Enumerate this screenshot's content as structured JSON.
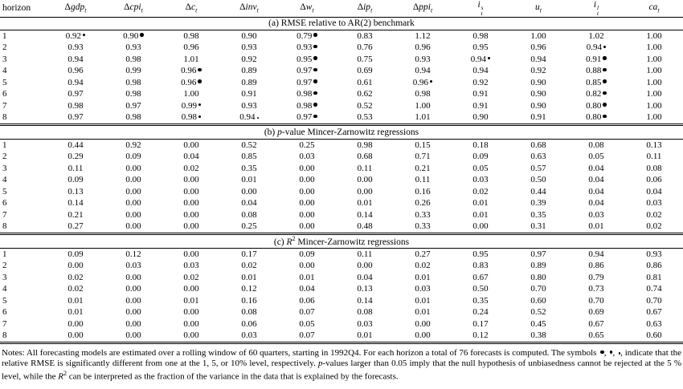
{
  "page": {
    "background": "#ffffff",
    "text_color": "#000000"
  },
  "table": {
    "header": {
      "first_column": "horizon",
      "columns": [
        {
          "prefix": "Δ",
          "base": "gdp",
          "sub": "t",
          "sup": ""
        },
        {
          "prefix": "Δ",
          "base": "cpi",
          "sub": "t",
          "sup": ""
        },
        {
          "prefix": "Δ",
          "base": "c",
          "sub": "t",
          "sup": ""
        },
        {
          "prefix": "Δ",
          "base": "inv",
          "sub": "t",
          "sup": ""
        },
        {
          "prefix": "Δ",
          "base": "w",
          "sub": "t",
          "sup": ""
        },
        {
          "prefix": "Δ",
          "base": "ip",
          "sub": "t",
          "sup": ""
        },
        {
          "prefix": "Δ",
          "base": "ppi",
          "sub": "t",
          "sup": ""
        },
        {
          "prefix": "",
          "base": "i",
          "sub": "t",
          "sup": "s"
        },
        {
          "prefix": "",
          "base": "u",
          "sub": "t",
          "sup": ""
        },
        {
          "prefix": "",
          "base": "i",
          "sub": "t",
          "sup": "l"
        },
        {
          "prefix": "",
          "base": "ca",
          "sub": "t",
          "sup": ""
        }
      ]
    },
    "significance_legend": {
      "1": "significant at 1% (large bullet)",
      "5": "significant at 5% (medium bullet)",
      "10": "significant at 10% (small dot)"
    },
    "panels": [
      {
        "id": "a",
        "title_segments": [
          {
            "t": "(a) RMSE relative to AR(2) benchmark"
          }
        ],
        "rows": [
          {
            "horizon": "1",
            "cells": [
              "0.92*5",
              "0.90*1",
              "0.98",
              "0.90",
              "0.79*1",
              "0.83",
              "1.12",
              "0.98",
              "1.00",
              "1.02",
              "1.00"
            ]
          },
          {
            "horizon": "2",
            "cells": [
              "0.93",
              "0.93",
              "0.96",
              "0.93",
              "0.93*1",
              "0.76",
              "0.96",
              "0.95",
              "0.96",
              "0.94*5",
              "1.00"
            ]
          },
          {
            "horizon": "3",
            "cells": [
              "0.94",
              "0.98",
              "1.01",
              "0.92",
              "0.95*1",
              "0.75",
              "0.93",
              "0.94*5",
              "0.94",
              "0.91*1",
              "1.00"
            ]
          },
          {
            "horizon": "4",
            "cells": [
              "0.96",
              "0.99",
              "0.96*1",
              "0.89",
              "0.97*1",
              "0.69",
              "0.94",
              "0.94",
              "0.92",
              "0.88*1",
              "1.00"
            ]
          },
          {
            "horizon": "5",
            "cells": [
              "0.94",
              "0.98",
              "0.96*1",
              "0.89",
              "0.97*1",
              "0.61",
              "0.96*5",
              "0.92",
              "0.90",
              "0.85*1",
              "1.00"
            ]
          },
          {
            "horizon": "6",
            "cells": [
              "0.97",
              "0.98",
              "1.00",
              "0.91",
              "0.98*1",
              "0.62",
              "0.98",
              "0.91",
              "0.90",
              "0.82*1",
              "1.00"
            ]
          },
          {
            "horizon": "7",
            "cells": [
              "0.98",
              "0.97",
              "0.99*5",
              "0.93",
              "0.98*1",
              "0.52",
              "1.00",
              "0.91",
              "0.90",
              "0.80*1",
              "1.00"
            ]
          },
          {
            "horizon": "8",
            "cells": [
              "0.97",
              "0.98",
              "0.98*5",
              "0.94*10",
              "0.97*1",
              "0.53",
              "1.01",
              "0.90",
              "0.91",
              "0.80*1",
              "1.00"
            ]
          }
        ]
      },
      {
        "id": "b",
        "title_segments": [
          {
            "t": "(b) "
          },
          {
            "t": "p",
            "style": "i"
          },
          {
            "t": "-value Mincer-Zarnowitz regressions"
          }
        ],
        "rows": [
          {
            "horizon": "1",
            "cells": [
              "0.44",
              "0.92",
              "0.00",
              "0.52",
              "0.25",
              "0.98",
              "0.15",
              "0.18",
              "0.68",
              "0.08",
              "0.13"
            ]
          },
          {
            "horizon": "2",
            "cells": [
              "0.29",
              "0.09",
              "0.04",
              "0.85",
              "0.03",
              "0.68",
              "0.71",
              "0.09",
              "0.63",
              "0.05",
              "0.11"
            ]
          },
          {
            "horizon": "3",
            "cells": [
              "0.11",
              "0.00",
              "0.02",
              "0.35",
              "0.00",
              "0.11",
              "0.21",
              "0.05",
              "0.57",
              "0.04",
              "0.08"
            ]
          },
          {
            "horizon": "4",
            "cells": [
              "0.09",
              "0.00",
              "0.00",
              "0.01",
              "0.00",
              "0.00",
              "0.11",
              "0.03",
              "0.50",
              "0.04",
              "0.06"
            ]
          },
          {
            "horizon": "5",
            "cells": [
              "0.13",
              "0.00",
              "0.00",
              "0.00",
              "0.00",
              "0.00",
              "0.16",
              "0.02",
              "0.44",
              "0.04",
              "0.04"
            ]
          },
          {
            "horizon": "6",
            "cells": [
              "0.14",
              "0.00",
              "0.00",
              "0.04",
              "0.00",
              "0.01",
              "0.26",
              "0.01",
              "0.39",
              "0.04",
              "0.03"
            ]
          },
          {
            "horizon": "7",
            "cells": [
              "0.21",
              "0.00",
              "0.00",
              "0.08",
              "0.00",
              "0.14",
              "0.33",
              "0.01",
              "0.35",
              "0.03",
              "0.02"
            ]
          },
          {
            "horizon": "8",
            "cells": [
              "0.27",
              "0.00",
              "0.00",
              "0.25",
              "0.00",
              "0.48",
              "0.33",
              "0.00",
              "0.31",
              "0.01",
              "0.02"
            ]
          }
        ]
      },
      {
        "id": "c",
        "title_segments": [
          {
            "t": "(c) "
          },
          {
            "t": "R",
            "style": "i"
          },
          {
            "t": "2",
            "style": "sup"
          },
          {
            "t": " Mincer-Zarnowitz regressions"
          }
        ],
        "rows": [
          {
            "horizon": "1",
            "cells": [
              "0.09",
              "0.12",
              "0.00",
              "0.17",
              "0.09",
              "0.11",
              "0.27",
              "0.95",
              "0.97",
              "0.94",
              "0.93"
            ]
          },
          {
            "horizon": "2",
            "cells": [
              "0.00",
              "0.03",
              "0.03",
              "0.02",
              "0.00",
              "0.00",
              "0.02",
              "0.83",
              "0.89",
              "0.86",
              "0.86"
            ]
          },
          {
            "horizon": "3",
            "cells": [
              "0.02",
              "0.00",
              "0.02",
              "0.01",
              "0.01",
              "0.04",
              "0.01",
              "0.67",
              "0.80",
              "0.79",
              "0.81"
            ]
          },
          {
            "horizon": "4",
            "cells": [
              "0.02",
              "0.00",
              "0.00",
              "0.12",
              "0.04",
              "0.13",
              "0.03",
              "0.50",
              "0.70",
              "0.73",
              "0.74"
            ]
          },
          {
            "horizon": "5",
            "cells": [
              "0.01",
              "0.00",
              "0.01",
              "0.16",
              "0.06",
              "0.14",
              "0.01",
              "0.35",
              "0.60",
              "0.70",
              "0.70"
            ]
          },
          {
            "horizon": "6",
            "cells": [
              "0.01",
              "0.00",
              "0.00",
              "0.08",
              "0.07",
              "0.08",
              "0.01",
              "0.24",
              "0.52",
              "0.69",
              "0.67"
            ]
          },
          {
            "horizon": "7",
            "cells": [
              "0.00",
              "0.00",
              "0.00",
              "0.06",
              "0.05",
              "0.03",
              "0.00",
              "0.17",
              "0.45",
              "0.67",
              "0.63"
            ]
          },
          {
            "horizon": "8",
            "cells": [
              "0.00",
              "0.00",
              "0.00",
              "0.03",
              "0.07",
              "0.01",
              "0.00",
              "0.12",
              "0.38",
              "0.65",
              "0.60"
            ]
          }
        ]
      }
    ]
  },
  "notes": {
    "segments": [
      {
        "t": "Notes: All forecasting models are estimated over a rolling window of 60 quarters, starting in 1992Q4. For each horizon a total of 76 forecasts is computed. The symbols "
      },
      {
        "t": "",
        "style": "sig1"
      },
      {
        "t": ", "
      },
      {
        "t": "",
        "style": "sig5"
      },
      {
        "t": ", "
      },
      {
        "t": "",
        "style": "sig10"
      },
      {
        "t": ", indicate that the relative RMSE is significantly different from one at the 1, 5, or 10% level, respectively. "
      },
      {
        "t": "p",
        "style": "i"
      },
      {
        "t": "-values larger than 0.05 imply that the null hypothesis of unbiasedness cannot be rejected at the 5 % level, while the "
      },
      {
        "t": "R",
        "style": "i"
      },
      {
        "t": "2",
        "style": "sup"
      },
      {
        "t": " can be interpreted as the fraction of the variance in the data that is explained by the forecasts."
      }
    ]
  }
}
